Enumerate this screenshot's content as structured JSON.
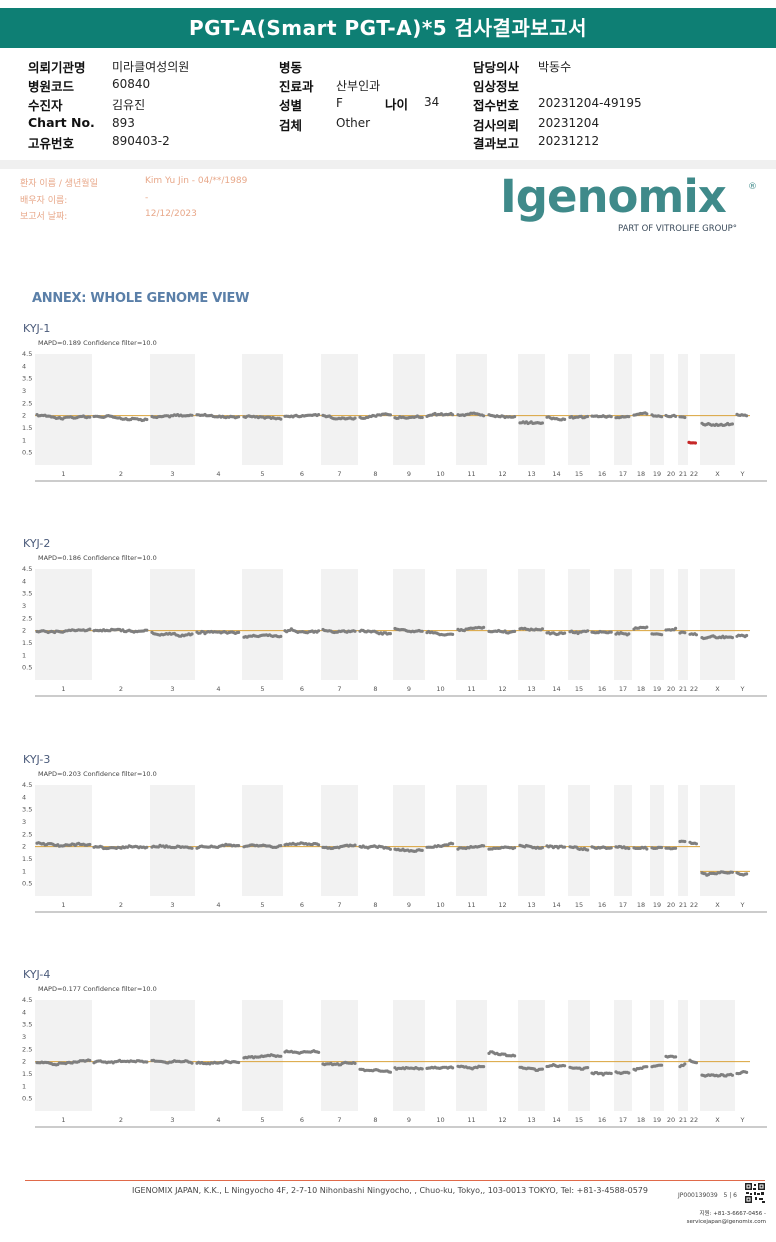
{
  "report_title": "PGT-A(Smart PGT-A)*5 검사결과보고서",
  "header": {
    "col1": [
      {
        "label": "의뢰기관명",
        "value": "미라클여성의원"
      },
      {
        "label": "병원코드",
        "value": "60840"
      },
      {
        "label": "수진자",
        "value": "김유진"
      },
      {
        "label": "Chart No.",
        "value": "893"
      },
      {
        "label": "고유번호",
        "value": "890403-2"
      }
    ],
    "col2": [
      {
        "label": "병동",
        "value": ""
      },
      {
        "label": "진료과",
        "value": "산부인과"
      },
      {
        "label": "성별",
        "value": "F"
      },
      {
        "label": "검체",
        "value": "Other"
      }
    ],
    "age_label": "나이",
    "age_value": "34",
    "col3": [
      {
        "label": "담당의사",
        "value": "박동수"
      },
      {
        "label": "임상정보",
        "value": ""
      },
      {
        "label": "접수번호",
        "value": "20231204-49195"
      },
      {
        "label": "검사의뢰",
        "value": "20231204"
      },
      {
        "label": "결과보고",
        "value": "20231212"
      }
    ]
  },
  "patient_meta": [
    {
      "label": "환자 이름 / 생년월일",
      "value": "Kim Yu Jin - 04/**/1989"
    },
    {
      "label": "배우자 이름:",
      "value": "-"
    },
    {
      "label": "보고서 날짜:",
      "value": "12/12/2023"
    }
  ],
  "logo": {
    "word": "Igenomix",
    "reg": "®",
    "tagline": "PART OF VITROLIFE GROUP°"
  },
  "annex_title": "ANNEX: WHOLE GENOME VIEW",
  "colors": {
    "banner": "#0e7f74",
    "brand": "#3f8a8a",
    "baseline": "#d9a23a",
    "dots": "#7f7f7f",
    "abnormal": "#c62828",
    "band": "#f2f2f2"
  },
  "chart_data": [
    {
      "type": "scatter",
      "title": "KYJ-1",
      "subtitle": "MAPD=0.189 Confidence filter=10.0",
      "ylim": [
        0,
        4.5
      ],
      "yticks": [
        "0.5",
        "1",
        "1.5",
        "2",
        "2.5",
        "3",
        "3.5",
        "4",
        "4.5"
      ],
      "baseline": 2,
      "categories": [
        "1",
        "2",
        "3",
        "4",
        "5",
        "6",
        "7",
        "8",
        "9",
        "10",
        "11",
        "12",
        "13",
        "14",
        "15",
        "16",
        "17",
        "18",
        "19",
        "20",
        "21",
        "22",
        "X",
        "Y"
      ],
      "copy_number": [
        2.0,
        1.95,
        1.95,
        2.05,
        1.98,
        2.0,
        2.0,
        1.95,
        1.95,
        2.0,
        2.0,
        2.05,
        1.7,
        1.95,
        1.95,
        2.0,
        1.9,
        2.05,
        2.0,
        2.0,
        1.95,
        0.9,
        1.7,
        2.05
      ]
    },
    {
      "type": "scatter",
      "title": "KYJ-2",
      "subtitle": "MAPD=0.186 Confidence filter=10.0",
      "ylim": [
        0,
        4.5
      ],
      "yticks": [
        "0.5",
        "1",
        "1.5",
        "2",
        "2.5",
        "3",
        "3.5",
        "4",
        "4.5"
      ],
      "baseline": 2,
      "categories": [
        "1",
        "2",
        "3",
        "4",
        "5",
        "6",
        "7",
        "8",
        "9",
        "10",
        "11",
        "12",
        "13",
        "14",
        "15",
        "16",
        "17",
        "18",
        "19",
        "20",
        "21",
        "22",
        "X",
        "Y"
      ],
      "copy_number": [
        1.95,
        2.0,
        1.9,
        1.95,
        1.75,
        2.0,
        2.0,
        2.0,
        2.05,
        1.95,
        2.0,
        1.95,
        2.1,
        1.9,
        2.0,
        1.9,
        1.85,
        2.1,
        1.85,
        2.0,
        1.9,
        1.85,
        1.7,
        1.8
      ]
    },
    {
      "type": "scatter",
      "title": "KYJ-3",
      "subtitle": "MAPD=0.203 Confidence filter=10.0",
      "ylim": [
        0,
        4.5
      ],
      "yticks": [
        "0.5",
        "1",
        "1.5",
        "2",
        "2.5",
        "3",
        "3.5",
        "4",
        "4.5"
      ],
      "baseline": 2,
      "categories": [
        "1",
        "2",
        "3",
        "4",
        "5",
        "6",
        "7",
        "8",
        "9",
        "10",
        "11",
        "12",
        "13",
        "14",
        "15",
        "16",
        "17",
        "18",
        "19",
        "20",
        "21",
        "22",
        "X",
        "Y"
      ],
      "copy_number": [
        2.1,
        2.0,
        2.0,
        1.95,
        2.0,
        2.05,
        2.0,
        2.0,
        1.9,
        2.0,
        1.95,
        1.9,
        2.0,
        2.0,
        1.95,
        1.95,
        2.0,
        1.95,
        1.95,
        1.95,
        2.2,
        2.2,
        0.9,
        0.95
      ],
      "sex_baseline": 1
    },
    {
      "type": "scatter",
      "title": "KYJ-4",
      "subtitle": "MAPD=0.177 Confidence filter=10.0",
      "ylim": [
        0,
        4.5
      ],
      "yticks": [
        "0.5",
        "1",
        "1.5",
        "2",
        "2.5",
        "3",
        "3.5",
        "4",
        "4.5"
      ],
      "baseline": 2,
      "categories": [
        "1",
        "2",
        "3",
        "4",
        "5",
        "6",
        "7",
        "8",
        "9",
        "10",
        "11",
        "12",
        "13",
        "14",
        "15",
        "16",
        "17",
        "18",
        "19",
        "20",
        "21",
        "22",
        "X",
        "Y"
      ],
      "copy_number": [
        1.95,
        2.0,
        2.05,
        1.95,
        2.15,
        2.4,
        1.95,
        1.7,
        1.75,
        1.75,
        1.85,
        2.35,
        1.75,
        1.8,
        1.75,
        1.55,
        1.6,
        1.7,
        1.75,
        2.2,
        1.85,
        2.05,
        1.45,
        1.5
      ]
    }
  ],
  "footer": {
    "address": "IGENOMIX JAPAN, K.K., L Ningyocho 4F, 2-7-10 Nihonbashi Ningyocho, , Chuo-ku, Tokyo,, 103-0013 TOKYO, Tel: +81-3-4588-0579",
    "doc_id": "JP000139039",
    "page": "5 | 6",
    "contact_line1": "지원: +81-3-6667-0456 -",
    "contact_line2": "servicejapan@igenomix.com"
  }
}
